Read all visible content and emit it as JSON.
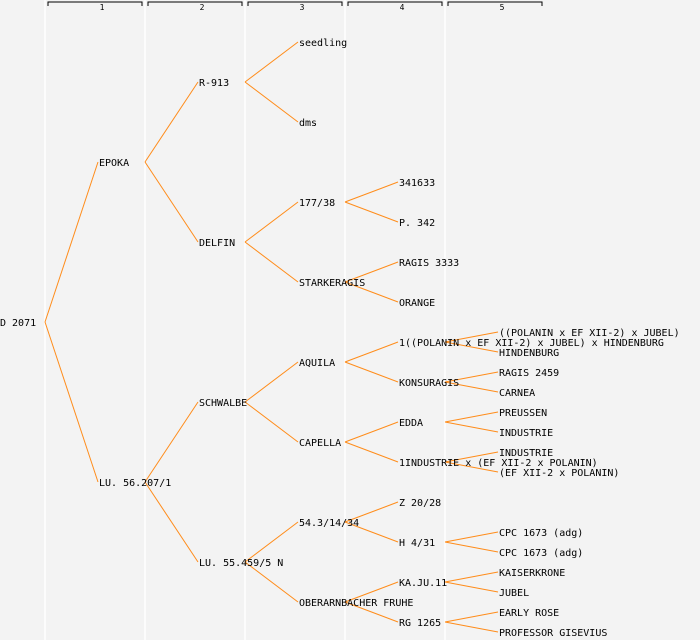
{
  "columns": [
    "1",
    "2",
    "3",
    "4",
    "5"
  ],
  "colors": {
    "background": "#f3f3f3",
    "line": "#ff8c1a",
    "column_divider": "#ffffff",
    "text": "#000000"
  },
  "tree": {
    "label": "D 2071",
    "children": [
      {
        "label": "EPOKA",
        "children": [
          {
            "label": "R-913",
            "children": [
              {
                "label": "seedling"
              },
              {
                "label": "dms"
              }
            ]
          },
          {
            "label": "DELFIN",
            "children": [
              {
                "label": "177/38",
                "children": [
                  {
                    "label": "341633"
                  },
                  {
                    "label": "P. 342"
                  }
                ]
              },
              {
                "label": "STARKERAGIS",
                "children": [
                  {
                    "label": "RAGIS 3333"
                  },
                  {
                    "label": "ORANGE"
                  }
                ]
              }
            ]
          }
        ]
      },
      {
        "label": "LU. 56.207/1",
        "children": [
          {
            "label": "SCHWALBE",
            "children": [
              {
                "label": "AQUILA",
                "children": [
                  {
                    "label": "1((POLANIN x EF XII-2) x JUBEL) x HINDENBURG",
                    "children": [
                      {
                        "label": "((POLANIN x EF XII-2) x JUBEL)"
                      },
                      {
                        "label": "HINDENBURG"
                      }
                    ]
                  },
                  {
                    "label": "KONSURAGIS",
                    "children": [
                      {
                        "label": "RAGIS 2459"
                      },
                      {
                        "label": "CARNEA"
                      }
                    ]
                  }
                ]
              },
              {
                "label": "CAPELLA",
                "children": [
                  {
                    "label": "EDDA",
                    "children": [
                      {
                        "label": "PREUSSEN"
                      },
                      {
                        "label": "INDUSTRIE"
                      }
                    ]
                  },
                  {
                    "label": "1INDUSTRIE x (EF XII-2 x POLANIN)",
                    "children": [
                      {
                        "label": "INDUSTRIE"
                      },
                      {
                        "label": "(EF XII-2 x POLANIN)"
                      }
                    ]
                  }
                ]
              }
            ]
          },
          {
            "label": "LU. 55.459/5 N",
            "children": [
              {
                "label": "54.3/14/34",
                "children": [
                  {
                    "label": "Z 20/28"
                  },
                  {
                    "label": "H 4/31",
                    "children": [
                      {
                        "label": "CPC 1673 (adg)"
                      },
                      {
                        "label": "CPC 1673 (adg)"
                      }
                    ]
                  }
                ]
              },
              {
                "label": "OBERARNBACHER FRUHE",
                "children": [
                  {
                    "label": "KA.JU.11",
                    "children": [
                      {
                        "label": "KAISERKRONE"
                      },
                      {
                        "label": "JUBEL"
                      }
                    ]
                  },
                  {
                    "label": "RG 1265",
                    "children": [
                      {
                        "label": "EARLY ROSE"
                      },
                      {
                        "label": "PROFESSOR GISEVIUS"
                      }
                    ]
                  }
                ]
              }
            ]
          }
        ]
      }
    ]
  }
}
